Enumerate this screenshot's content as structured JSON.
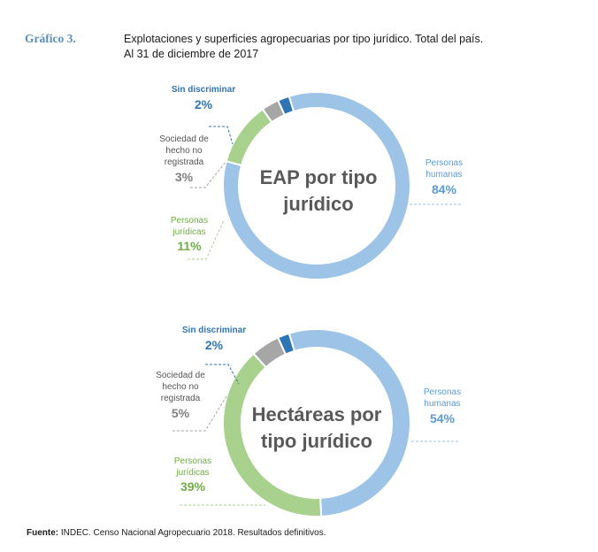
{
  "header": {
    "label": "Gráfico 3.",
    "title_line1": "Explotaciones y superficies agropecuarias por tipo jurídico. Total del país.",
    "title_line2": "Al 31 de diciembre de 2017"
  },
  "source": {
    "bold": "Fuente:",
    "text": " INDEC. Censo Nacional Agropecuario 2018. Resultados definitivos."
  },
  "colors": {
    "personas_humanas": "#9dc3e6",
    "personas_juridicas": "#a9d18e",
    "sociedad_de_hecho": "#a6a6a6",
    "sin_discriminar": "#2e75b6"
  },
  "chart_data": [
    {
      "type": "pie",
      "title": "EAP por tipo jurídico",
      "categories": [
        "Personas humanas",
        "Personas jurídicas",
        "Sociedad de hecho no registrada",
        "Sin discriminar"
      ],
      "values": [
        84,
        11,
        3,
        2
      ],
      "labels": {
        "humanas": [
          "Personas",
          "humanas"
        ],
        "humanas_pct": "84%",
        "juridicas": [
          "Personas",
          "jurídicas"
        ],
        "juridicas_pct": "11%",
        "sociedad": [
          "Sociedad de",
          "hecho no",
          "registrada"
        ],
        "sociedad_pct": "3%",
        "sin": "Sin discriminar",
        "sin_pct": "2%"
      },
      "center": [
        "EAP por tipo",
        "jurídico"
      ]
    },
    {
      "type": "pie",
      "title": "Hectáreas por tipo jurídico",
      "categories": [
        "Personas humanas",
        "Personas jurídicas",
        "Sociedad de hecho no registrada",
        "Sin discriminar"
      ],
      "values": [
        54,
        39,
        5,
        2
      ],
      "labels": {
        "humanas": [
          "Personas",
          "humanas"
        ],
        "humanas_pct": "54%",
        "juridicas": [
          "Personas",
          "jurídicas"
        ],
        "juridicas_pct": "39%",
        "sociedad": [
          "Sociedad de",
          "hecho no",
          "registrada"
        ],
        "sociedad_pct": "5%",
        "sin": "Sin discriminar",
        "sin_pct": "2%"
      },
      "center": [
        "Hectáreas por",
        "tipo jurídico"
      ]
    }
  ]
}
